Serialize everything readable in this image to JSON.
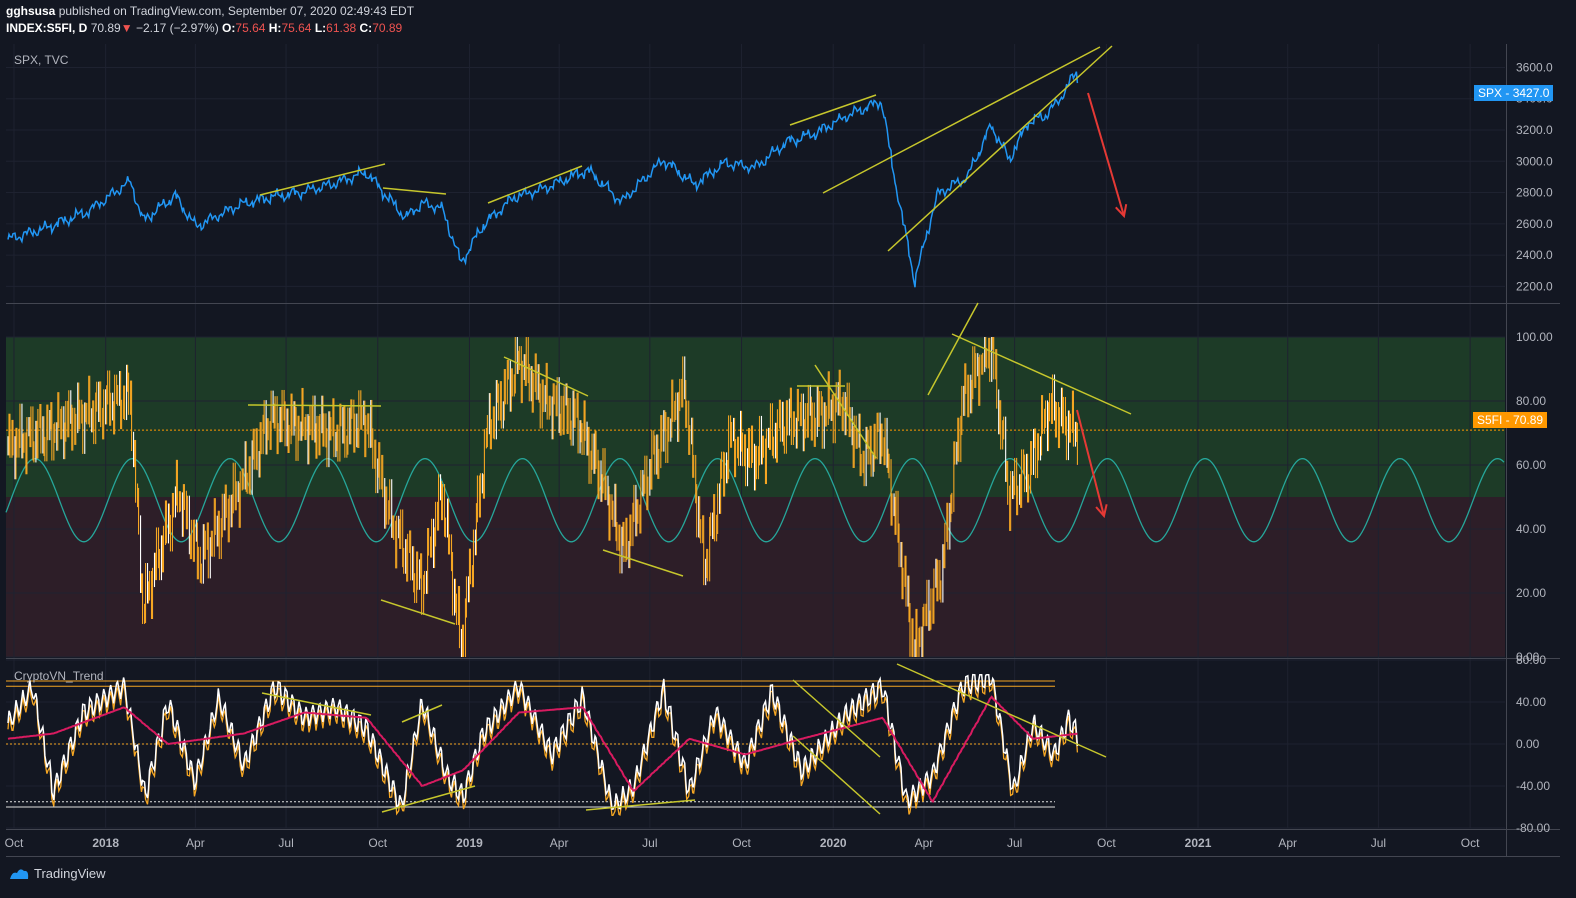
{
  "header": {
    "author": "gghsusa",
    "published_text": "published on TradingView.com, September 07, 2020 02:49:43 EDT",
    "symbol": "INDEX:S5FI, D",
    "last": "70.89",
    "change_arrow": "▼",
    "change": "−2.17 (−2.97%)",
    "o_label": "O:",
    "o": "75.64",
    "h_label": "H:",
    "h": "75.64",
    "l_label": "L:",
    "l": "61.38",
    "c_label": "C:",
    "c": "70.89"
  },
  "footer": {
    "brand": "TradingView",
    "logo_icon": "tradingview-logo-icon"
  },
  "colors": {
    "background": "#131722",
    "spx_line": "#2196f3",
    "trendline": "#c6c62c",
    "arrow": "#e53935",
    "s5fi_bars": "#f5a623",
    "sine": "#26a69a",
    "green_zone": "#1d3b27",
    "red_zone": "#2d1e28",
    "stoch_k": "#ffffff",
    "stoch_d": "#d81b60",
    "stoch_signal": "#f5a623",
    "price_tag_spx": "#2196f3",
    "price_tag_s5fi": "#ff9800"
  },
  "chart_data": [
    {
      "type": "line",
      "pane": "top",
      "title": "SPX, TVC",
      "series": [
        {
          "name": "SPX",
          "x": [
            "2017-09-25",
            "2017-11-01",
            "2017-12-15",
            "2018-01-26",
            "2018-02-08",
            "2018-03-12",
            "2018-04-02",
            "2018-05-15",
            "2018-06-15",
            "2018-07-15",
            "2018-08-15",
            "2018-09-20",
            "2018-10-10",
            "2018-10-29",
            "2018-11-15",
            "2018-12-05",
            "2018-12-24",
            "2019-01-15",
            "2019-02-15",
            "2019-03-15",
            "2019-04-30",
            "2019-06-03",
            "2019-07-15",
            "2019-08-15",
            "2019-09-15",
            "2019-10-15",
            "2019-11-15",
            "2019-12-15",
            "2020-01-15",
            "2020-02-19",
            "2020-03-01",
            "2020-03-23",
            "2020-04-15",
            "2020-05-15",
            "2020-06-08",
            "2020-06-26",
            "2020-07-15",
            "2020-08-01",
            "2020-08-15",
            "2020-09-02",
            "2020-09-04"
          ],
          "y": [
            2500,
            2570,
            2680,
            2872,
            2620,
            2780,
            2582,
            2720,
            2770,
            2800,
            2850,
            2930,
            2780,
            2640,
            2730,
            2700,
            2350,
            2590,
            2770,
            2820,
            2945,
            2740,
            3010,
            2850,
            2990,
            2960,
            3120,
            3180,
            3290,
            3386,
            2960,
            2237,
            2790,
            2900,
            3230,
            3010,
            3250,
            3290,
            3390,
            3580,
            3427
          ]
        }
      ],
      "ylim": [
        2100,
        3750
      ],
      "y_ticks": [
        "3600.0",
        "3400.0",
        "3200.0",
        "3000.0",
        "2800.0",
        "2600.0",
        "2400.0",
        "2200.0"
      ],
      "last_value_label": "SPX",
      "last_value": "3427.0"
    },
    {
      "type": "bar",
      "pane": "middle",
      "series": [
        {
          "name": "S5FI",
          "x": [
            "2017-09-25",
            "2017-11-15",
            "2018-01-26",
            "2018-02-08",
            "2018-03-15",
            "2018-04-05",
            "2018-05-15",
            "2018-06-15",
            "2018-07-20",
            "2018-08-20",
            "2018-09-20",
            "2018-10-15",
            "2018-11-15",
            "2018-12-05",
            "2018-12-24",
            "2019-01-20",
            "2019-02-20",
            "2019-03-20",
            "2019-04-20",
            "2019-05-15",
            "2019-06-05",
            "2019-07-05",
            "2019-08-05",
            "2019-08-25",
            "2019-09-20",
            "2019-10-15",
            "2019-11-15",
            "2019-12-15",
            "2020-01-10",
            "2020-01-31",
            "2020-02-20",
            "2020-03-05",
            "2020-03-23",
            "2020-04-20",
            "2020-05-10",
            "2020-06-08",
            "2020-06-26",
            "2020-07-15",
            "2020-08-05",
            "2020-08-25",
            "2020-09-04"
          ],
          "y": [
            66,
            72,
            82,
            15,
            52,
            30,
            52,
            74,
            72,
            70,
            74,
            42,
            22,
            52,
            3,
            72,
            92,
            80,
            74,
            55,
            33,
            62,
            84,
            28,
            68,
            62,
            74,
            75,
            80,
            62,
            70,
            40,
            2,
            28,
            80,
            98,
            50,
            58,
            78,
            72,
            70.89
          ]
        }
      ],
      "ylim": [
        0,
        110
      ],
      "zones": [
        {
          "from": 50,
          "to": 100,
          "color": "green"
        },
        {
          "from": 0,
          "to": 50,
          "color": "red"
        }
      ],
      "y_ticks": [
        "100.00",
        "80.00",
        "60.00",
        "40.00",
        "20.00",
        "0.00"
      ],
      "last_value_label": "S5FI",
      "last_value": "70.89"
    },
    {
      "type": "line",
      "pane": "bottom",
      "title": "CryptoVN_Trend",
      "series": [
        {
          "x": [
            "2017-09-25",
            "2017-10-20",
            "2017-11-10",
            "2017-12-10",
            "2018-01-20",
            "2018-02-10",
            "2018-03-05",
            "2018-04-01",
            "2018-04-25",
            "2018-05-20",
            "2018-06-20",
            "2018-07-20",
            "2018-08-20",
            "2018-09-20",
            "2018-10-25",
            "2018-11-15",
            "2018-12-10",
            "2018-12-26",
            "2019-01-15",
            "2019-02-20",
            "2019-03-25",
            "2019-04-25",
            "2019-05-25",
            "2019-06-15",
            "2019-07-15",
            "2019-08-10",
            "2019-09-05",
            "2019-10-05",
            "2019-11-01",
            "2019-12-01",
            "2020-01-15",
            "2020-02-20",
            "2020-03-15",
            "2020-04-10",
            "2020-05-10",
            "2020-06-08",
            "2020-06-30",
            "2020-07-20",
            "2020-08-10",
            "2020-08-25",
            "2020-09-04"
          ],
          "y": [
            20,
            55,
            -45,
            30,
            55,
            -50,
            40,
            -35,
            45,
            -20,
            55,
            25,
            35,
            15,
            -60,
            40,
            -30,
            -50,
            10,
            55,
            -10,
            45,
            -60,
            -40,
            52,
            -45,
            30,
            -20,
            50,
            -25,
            30,
            55,
            -55,
            -30,
            55,
            65,
            -45,
            20,
            -10,
            25,
            5
          ]
        },
        {
          "x": [
            "2017-09-25",
            "2017-11-10",
            "2018-01-20",
            "2018-03-05",
            "2018-05-20",
            "2018-07-20",
            "2018-09-20",
            "2018-11-15",
            "2018-12-26",
            "2019-02-20",
            "2019-04-25",
            "2019-06-15",
            "2019-08-10",
            "2019-10-05",
            "2019-12-01",
            "2020-02-20",
            "2020-04-10",
            "2020-06-08",
            "2020-07-20",
            "2020-09-04"
          ],
          "y": [
            5,
            10,
            35,
            0,
            10,
            30,
            25,
            -40,
            -25,
            30,
            35,
            -45,
            5,
            -10,
            5,
            25,
            -55,
            45,
            5,
            10
          ]
        }
      ],
      "ylim": [
        -80,
        80
      ],
      "hlines": [
        60,
        55,
        0,
        -55,
        -60
      ],
      "y_ticks": [
        "80.00",
        "40.00",
        "0.00",
        "-40.00",
        "-80.00"
      ]
    }
  ],
  "x_axis": {
    "ticks": [
      "Oct",
      "2018",
      "Apr",
      "Jul",
      "Oct",
      "2019",
      "Apr",
      "Jul",
      "Oct",
      "2020",
      "Apr",
      "Jul",
      "Oct",
      "2021",
      "Apr",
      "Jul",
      "Oct"
    ],
    "tick_dates": [
      "2017-10-01",
      "2018-01-01",
      "2018-04-01",
      "2018-07-01",
      "2018-10-01",
      "2019-01-01",
      "2019-04-01",
      "2019-07-01",
      "2019-10-01",
      "2020-01-01",
      "2020-04-01",
      "2020-07-01",
      "2020-10-01",
      "2021-01-01",
      "2021-04-01",
      "2021-07-01",
      "2021-10-01"
    ],
    "range": [
      "2017-09-23",
      "2021-11-05"
    ]
  }
}
